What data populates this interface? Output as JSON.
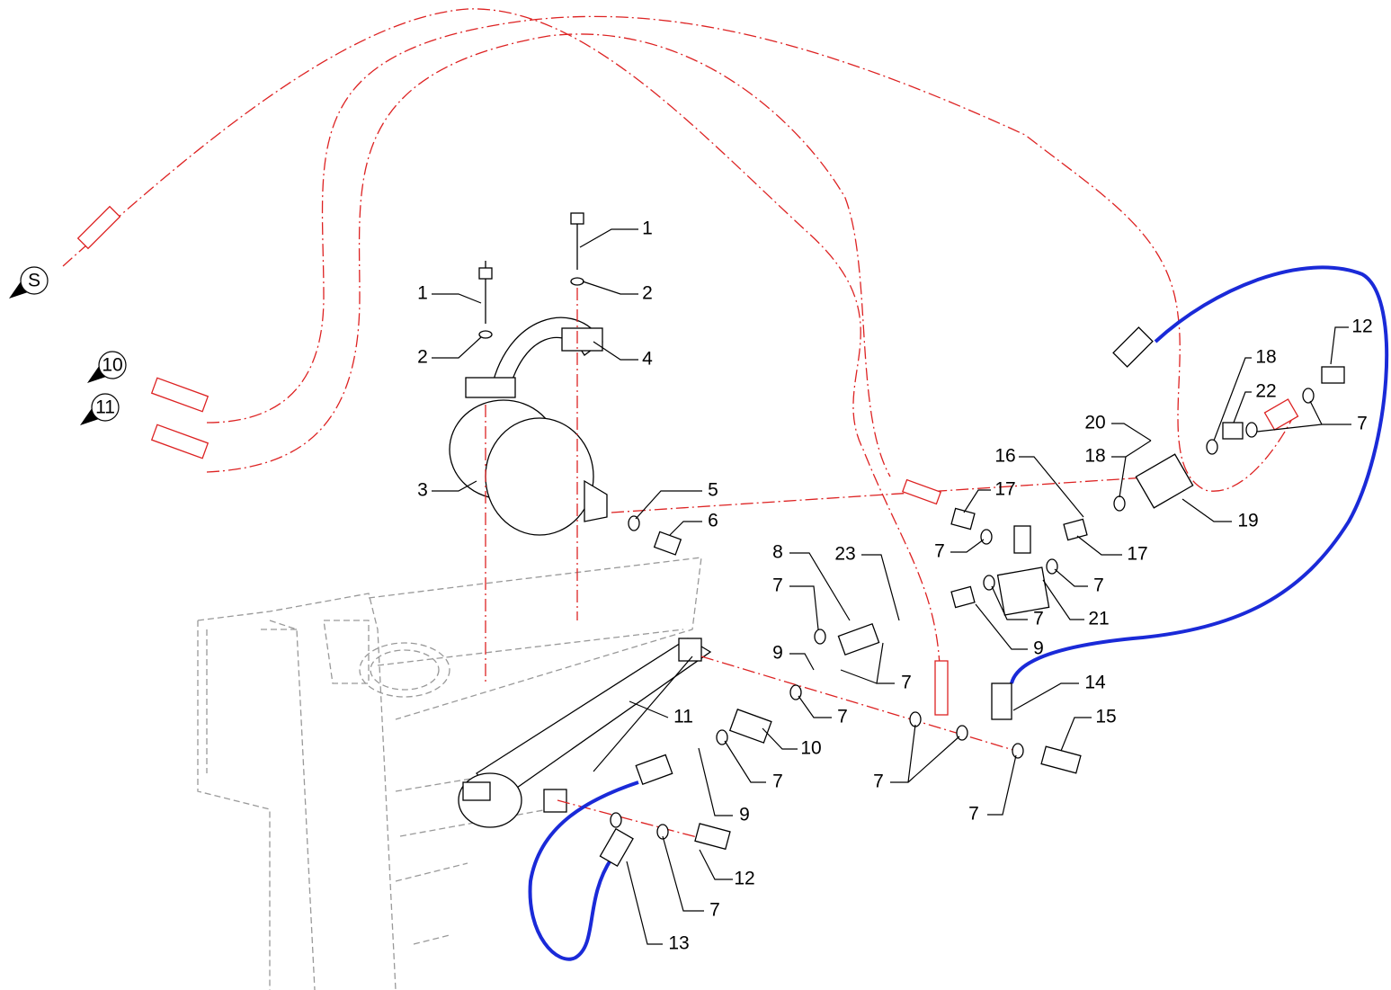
{
  "callouts": [
    {
      "label": "1"
    },
    {
      "label": "2"
    },
    {
      "label": "1"
    },
    {
      "label": "2"
    },
    {
      "label": "4"
    },
    {
      "label": "3"
    },
    {
      "label": "5"
    },
    {
      "label": "6"
    },
    {
      "label": "17"
    },
    {
      "label": "16"
    },
    {
      "label": "18"
    },
    {
      "label": "20"
    },
    {
      "label": "18"
    },
    {
      "label": "22"
    },
    {
      "label": "12"
    },
    {
      "label": "7"
    },
    {
      "label": "19"
    },
    {
      "label": "17"
    },
    {
      "label": "7"
    },
    {
      "label": "23"
    },
    {
      "label": "8"
    },
    {
      "label": "7"
    },
    {
      "label": "7"
    },
    {
      "label": "7"
    },
    {
      "label": "21"
    },
    {
      "label": "9"
    },
    {
      "label": "9"
    },
    {
      "label": "7"
    },
    {
      "label": "11"
    },
    {
      "label": "7"
    },
    {
      "label": "14"
    },
    {
      "label": "15"
    },
    {
      "label": "10"
    },
    {
      "label": "7"
    },
    {
      "label": "7"
    },
    {
      "label": "9"
    },
    {
      "label": "7"
    },
    {
      "label": "12"
    },
    {
      "label": "7"
    },
    {
      "label": "13"
    }
  ],
  "markers": [
    {
      "label": "S"
    },
    {
      "label": "10"
    },
    {
      "label": "11"
    }
  ]
}
